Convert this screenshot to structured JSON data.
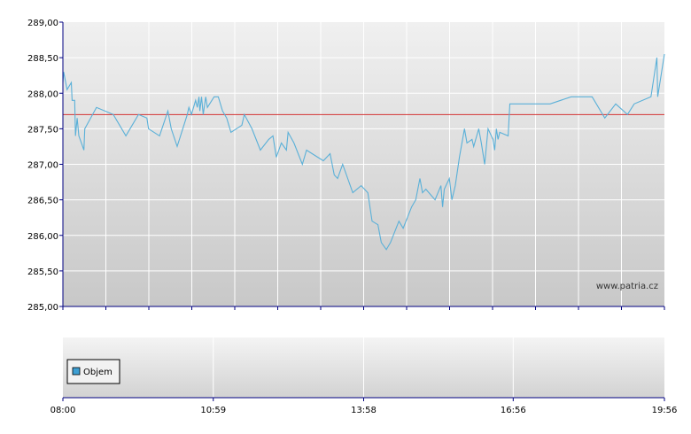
{
  "watermark": "www.patria.cz",
  "chart_data": {
    "type": "line",
    "title": "",
    "xlabel": "",
    "ylabel": "",
    "x_range": [
      "08:00",
      "19:56"
    ],
    "x_ticks": [
      "08:00",
      "10:59",
      "13:58",
      "16:56",
      "19:56"
    ],
    "ylim": [
      285.0,
      289.0
    ],
    "y_ticks": [
      "285,00",
      "285,50",
      "286,00",
      "286,50",
      "287,00",
      "287,50",
      "288,00",
      "288,50",
      "289,00"
    ],
    "reference_line": 287.7,
    "grid": true,
    "series": [
      {
        "values": [
          [
            "08:00",
            288.15
          ],
          [
            "08:01",
            288.3
          ],
          [
            "08:05",
            288.05
          ],
          [
            "08:10",
            288.15
          ],
          [
            "08:11",
            287.9
          ],
          [
            "08:14",
            287.9
          ],
          [
            "08:15",
            287.4
          ],
          [
            "08:17",
            287.65
          ],
          [
            "08:19",
            287.4
          ],
          [
            "08:22",
            287.3
          ],
          [
            "08:25",
            287.2
          ],
          [
            "08:26",
            287.5
          ],
          [
            "08:40",
            287.8
          ],
          [
            "09:00",
            287.7
          ],
          [
            "09:15",
            287.4
          ],
          [
            "09:30",
            287.7
          ],
          [
            "09:40",
            287.65
          ],
          [
            "09:42",
            287.5
          ],
          [
            "09:55",
            287.4
          ],
          [
            "10:05",
            287.75
          ],
          [
            "10:09",
            287.5
          ],
          [
            "10:16",
            287.25
          ],
          [
            "10:28",
            287.7
          ],
          [
            "10:30",
            287.8
          ],
          [
            "10:33",
            287.7
          ],
          [
            "10:38",
            287.9
          ],
          [
            "10:40",
            287.8
          ],
          [
            "10:42",
            287.95
          ],
          [
            "10:43",
            287.75
          ],
          [
            "10:45",
            287.95
          ],
          [
            "10:47",
            287.7
          ],
          [
            "10:50",
            287.95
          ],
          [
            "10:52",
            287.8
          ],
          [
            "11:00",
            287.95
          ],
          [
            "11:05",
            287.95
          ],
          [
            "11:10",
            287.75
          ],
          [
            "11:15",
            287.65
          ],
          [
            "11:20",
            287.45
          ],
          [
            "11:33",
            287.55
          ],
          [
            "11:36",
            287.7
          ],
          [
            "11:45",
            287.5
          ],
          [
            "11:55",
            287.2
          ],
          [
            "12:05",
            287.35
          ],
          [
            "12:10",
            287.4
          ],
          [
            "12:14",
            287.1
          ],
          [
            "12:20",
            287.3
          ],
          [
            "12:26",
            287.2
          ],
          [
            "12:28",
            287.45
          ],
          [
            "12:35",
            287.3
          ],
          [
            "12:45",
            287.0
          ],
          [
            "12:50",
            287.2
          ],
          [
            "13:10",
            287.05
          ],
          [
            "13:18",
            287.15
          ],
          [
            "13:23",
            286.85
          ],
          [
            "13:27",
            286.8
          ],
          [
            "13:33",
            287.0
          ],
          [
            "13:39",
            286.8
          ],
          [
            "13:45",
            286.6
          ],
          [
            "13:55",
            286.7
          ],
          [
            "14:03",
            286.6
          ],
          [
            "14:08",
            286.2
          ],
          [
            "14:15",
            286.15
          ],
          [
            "14:19",
            285.9
          ],
          [
            "14:25",
            285.8
          ],
          [
            "14:30",
            285.9
          ],
          [
            "14:40",
            286.2
          ],
          [
            "14:45",
            286.1
          ],
          [
            "14:55",
            286.4
          ],
          [
            "15:00",
            286.5
          ],
          [
            "15:05",
            286.8
          ],
          [
            "15:08",
            286.6
          ],
          [
            "15:12",
            286.65
          ],
          [
            "15:23",
            286.5
          ],
          [
            "15:30",
            286.7
          ],
          [
            "15:32",
            286.4
          ],
          [
            "15:34",
            286.65
          ],
          [
            "15:40",
            286.8
          ],
          [
            "15:43",
            286.5
          ],
          [
            "15:47",
            286.7
          ],
          [
            "15:52",
            287.1
          ],
          [
            "15:58",
            287.5
          ],
          [
            "16:01",
            287.3
          ],
          [
            "16:07",
            287.35
          ],
          [
            "16:09",
            287.25
          ],
          [
            "16:15",
            287.5
          ],
          [
            "16:18",
            287.3
          ],
          [
            "16:22",
            287.0
          ],
          [
            "16:26",
            287.5
          ],
          [
            "16:32",
            287.35
          ],
          [
            "16:34",
            287.2
          ],
          [
            "16:36",
            287.5
          ],
          [
            "16:38",
            287.35
          ],
          [
            "16:40",
            287.45
          ],
          [
            "16:50",
            287.4
          ],
          [
            "16:52",
            287.85
          ],
          [
            "17:40",
            287.85
          ],
          [
            "18:05",
            287.95
          ],
          [
            "18:30",
            287.95
          ],
          [
            "18:45",
            287.65
          ],
          [
            "18:58",
            287.85
          ],
          [
            "19:12",
            287.7
          ],
          [
            "19:20",
            287.85
          ],
          [
            "19:40",
            287.95
          ],
          [
            "19:47",
            288.5
          ],
          [
            "19:48",
            287.95
          ],
          [
            "19:56",
            288.55
          ]
        ]
      }
    ],
    "volume_panel": {
      "legend": "Objem",
      "legend_color": "#3d9fd3"
    }
  },
  "colors": {
    "line": "#5ab0d8",
    "reference": "#d33333",
    "grid": "#ffffff",
    "axis": "#000080"
  }
}
